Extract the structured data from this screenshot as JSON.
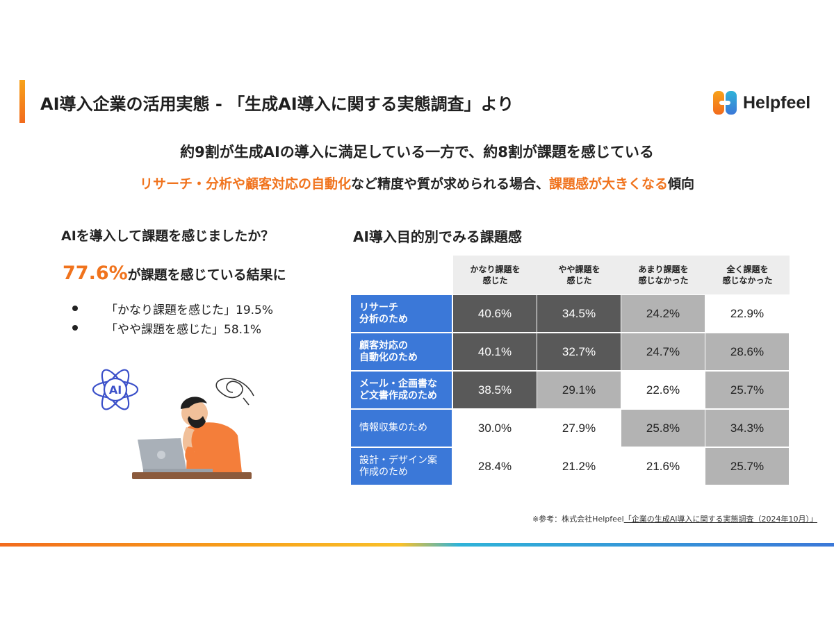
{
  "header": {
    "title": "AI導入企業の活用実態 - 「生成AI導入に関する実態調査」より",
    "logo_text": "Helpfeel"
  },
  "headline": "約9割が生成AIの導入に満足している一方で、約8割が課題を感じている",
  "subline": {
    "part1": "リサーチ・分析や顧客対応の自動化",
    "part2": "など精度や質が求められる場合、",
    "part3": "課題感が大きくなる",
    "part4": "傾向"
  },
  "left_panel": {
    "heading": "AIを導入して課題を感じましたか？",
    "stat_value": "77.6%",
    "stat_text": "が課題を感じている結果に",
    "bullets": [
      "「かなり課題を感じた」19.5%",
      "「やや課題を感じた」58.1%"
    ]
  },
  "right_panel": {
    "heading": "AI導入目的別でみる課題感"
  },
  "chart_data": {
    "type": "table",
    "columns": [
      "かなり課題を\n感じた",
      "やや課題を\n感じた",
      "あまり課題を\n感じなかった",
      "全く課題を\n感じなかった"
    ],
    "rows": [
      {
        "label": "リサーチ\n分析のため",
        "values": [
          "40.6%",
          "34.5%",
          "24.2%",
          "22.9%"
        ],
        "levels": [
          "d",
          "d",
          "m",
          "w"
        ]
      },
      {
        "label": "顧客対応の\n自動化のため",
        "values": [
          "40.1%",
          "32.7%",
          "24.7%",
          "28.6%"
        ],
        "levels": [
          "d",
          "d",
          "m",
          "m"
        ]
      },
      {
        "label": "メール・企画書な\nど文書作成のため",
        "values": [
          "38.5%",
          "29.1%",
          "22.6%",
          "25.7%"
        ],
        "levels": [
          "d",
          "m",
          "w",
          "m"
        ]
      },
      {
        "label": "情報収集のため",
        "values": [
          "30.0%",
          "27.9%",
          "25.8%",
          "34.3%"
        ],
        "levels": [
          "w",
          "w",
          "m",
          "m"
        ]
      },
      {
        "label": "設計・デザイン案\n作成のため",
        "values": [
          "28.4%",
          "21.2%",
          "21.6%",
          "25.7%"
        ],
        "levels": [
          "w",
          "w",
          "w",
          "m"
        ]
      }
    ],
    "colors": {
      "row_label": "#3b78d8",
      "dark": "#595959",
      "medium": "#b3b3b3",
      "light": "#ffffff",
      "header": "#ededed"
    }
  },
  "source": {
    "prefix": "※参考：株式会社Helpfeel",
    "link_text": "「企業の生成AI導入に関する実態調査（2024年10月）」"
  },
  "colors": {
    "accent": "#f0731d",
    "brand_blue": "#3b78d8"
  }
}
